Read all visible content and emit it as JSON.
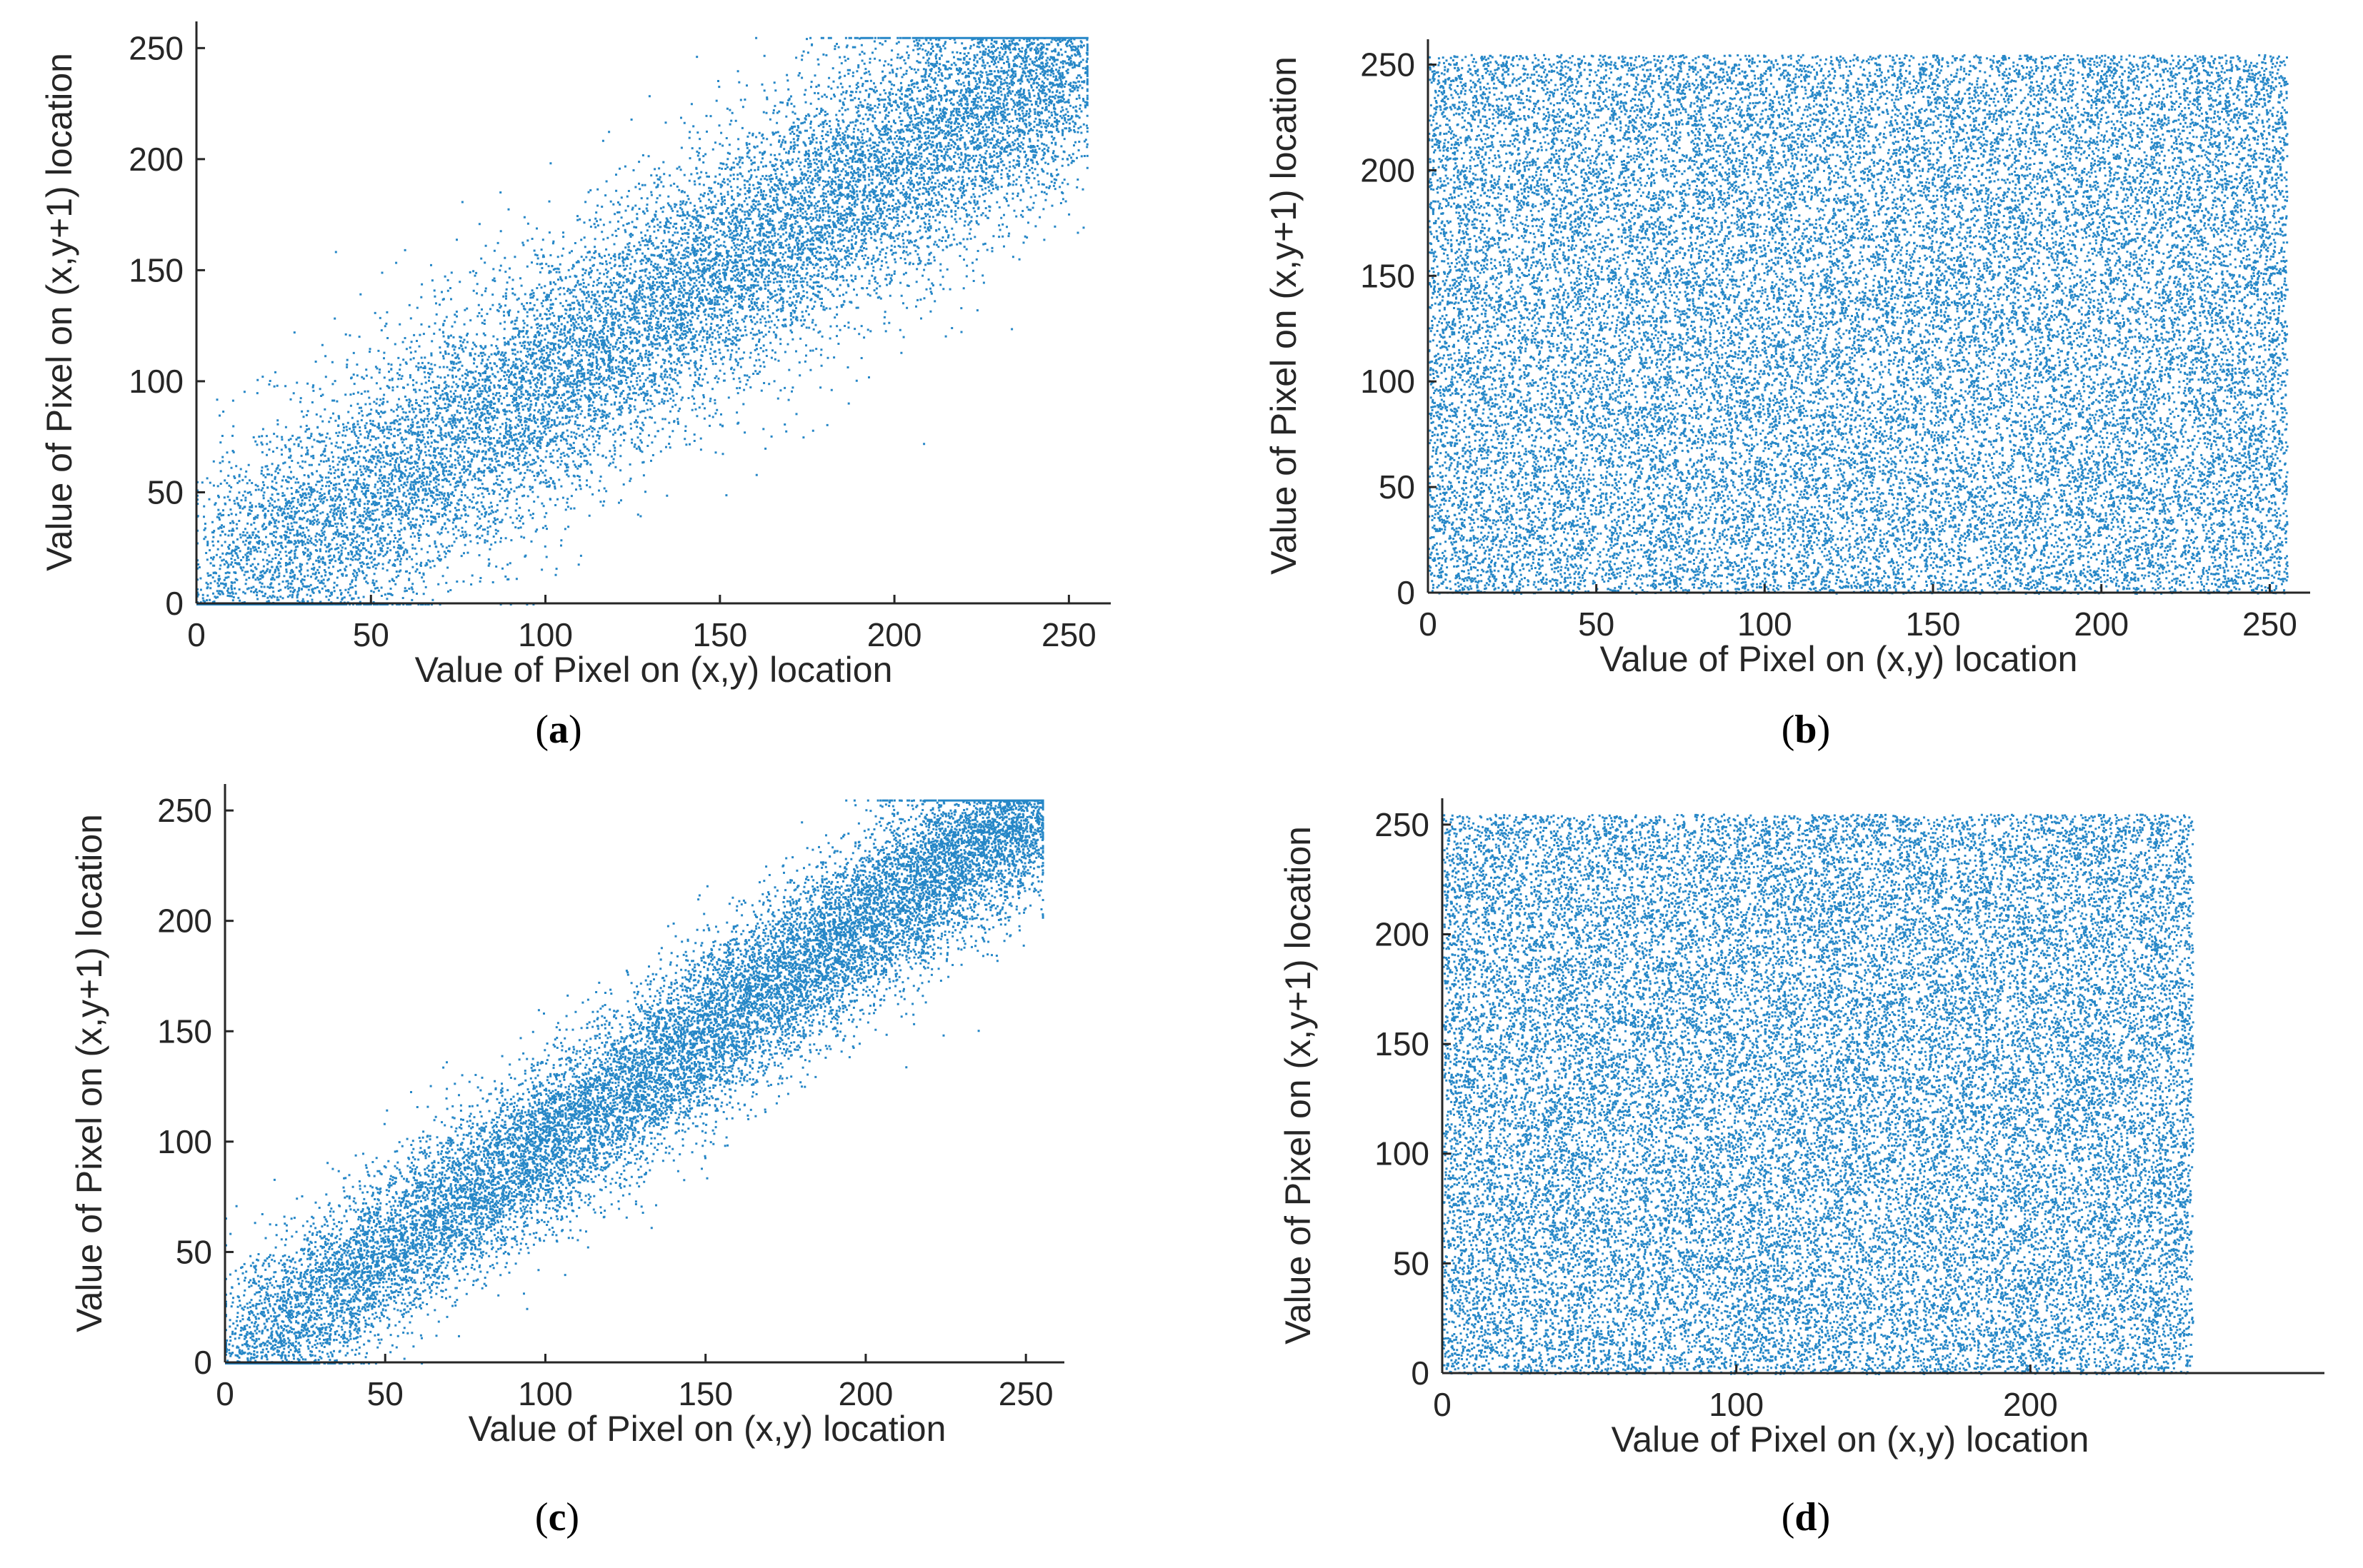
{
  "chart_data": [
    {
      "panel": "a",
      "type": "scatter",
      "caption_letter": "a",
      "xlabel": "Value of Pixel on (x,y) location",
      "ylabel": "Value of Pixel on (x,y+1) location",
      "xlim": [
        0,
        262
      ],
      "ylim": [
        0,
        262
      ],
      "xticks": [
        0,
        50,
        100,
        150,
        200,
        250
      ],
      "yticks": [
        0,
        50,
        100,
        150,
        200,
        250
      ],
      "distribution": "correlated",
      "spread": 30,
      "marker_color": "#0072BD",
      "point_count": 16000,
      "seed": 11
    },
    {
      "panel": "b",
      "type": "scatter",
      "caption_letter": "b",
      "xlabel": "Value of Pixel on (x,y) location",
      "ylabel": "Value of Pixel on (x,y+1) location",
      "xlim": [
        0,
        262
      ],
      "ylim": [
        0,
        262
      ],
      "xticks": [
        0,
        50,
        100,
        150,
        200,
        250
      ],
      "yticks": [
        0,
        50,
        100,
        150,
        200,
        250
      ],
      "distribution": "uniform",
      "data_range": [
        0,
        255
      ],
      "marker_color": "#0072BD",
      "point_count": 30000,
      "seed": 23
    },
    {
      "panel": "c",
      "type": "scatter",
      "caption_letter": "c",
      "xlabel": "Value of Pixel on (x,y) location",
      "ylabel": "Value of Pixel on (x,y+1) location",
      "xlim": [
        0,
        262
      ],
      "ylim": [
        0,
        262
      ],
      "xticks": [
        0,
        50,
        100,
        150,
        200,
        250
      ],
      "yticks": [
        0,
        50,
        100,
        150,
        200,
        250
      ],
      "distribution": "correlated",
      "spread": 20,
      "marker_color": "#0072BD",
      "point_count": 16000,
      "seed": 37
    },
    {
      "panel": "d",
      "type": "scatter",
      "caption_letter": "d",
      "xlabel": "Value of Pixel on (x,y) location",
      "ylabel": "Value of Pixel on (x,y+1) location",
      "xlim": [
        0,
        300
      ],
      "ylim": [
        0,
        262
      ],
      "xticks": [
        0,
        100,
        200
      ],
      "yticks": [
        0,
        50,
        100,
        150,
        200,
        250
      ],
      "distribution": "uniform",
      "data_range": [
        0,
        255
      ],
      "marker_color": "#0072BD",
      "point_count": 30000,
      "seed": 51
    }
  ]
}
